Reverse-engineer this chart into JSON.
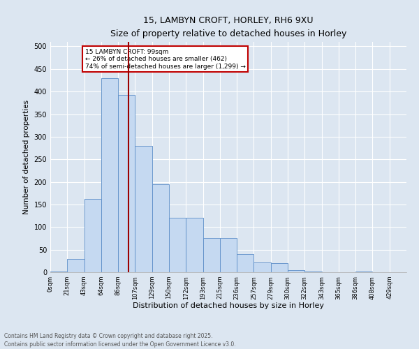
{
  "title1": "15, LAMBYN CROFT, HORLEY, RH6 9XU",
  "title2": "Size of property relative to detached houses in Horley",
  "xlabel": "Distribution of detached houses by size in Horley",
  "ylabel": "Number of detached properties",
  "bin_labels": [
    "0sqm",
    "21sqm",
    "43sqm",
    "64sqm",
    "86sqm",
    "107sqm",
    "129sqm",
    "150sqm",
    "172sqm",
    "193sqm",
    "215sqm",
    "236sqm",
    "257sqm",
    "279sqm",
    "300sqm",
    "322sqm",
    "343sqm",
    "365sqm",
    "386sqm",
    "408sqm",
    "429sqm"
  ],
  "bar_heights": [
    2,
    30,
    163,
    430,
    393,
    280,
    195,
    120,
    120,
    75,
    75,
    40,
    22,
    20,
    5,
    2,
    0,
    0,
    2,
    0,
    0
  ],
  "bar_color": "#c5d9f1",
  "bar_edge_color": "#5b8dc8",
  "vline_color": "#9b0000",
  "annotation_text": "15 LAMBYN CROFT: 99sqm\n← 26% of detached houses are smaller (462)\n74% of semi-detached houses are larger (1,299) →",
  "annotation_box_color": "#c00000",
  "background_color": "#dce6f1",
  "plot_bg_color": "#dce6f1",
  "footnote": "Contains HM Land Registry data © Crown copyright and database right 2025.\nContains public sector information licensed under the Open Government Licence v3.0.",
  "ylim": [
    0,
    510
  ],
  "yticks": [
    0,
    50,
    100,
    150,
    200,
    250,
    300,
    350,
    400,
    450,
    500
  ]
}
